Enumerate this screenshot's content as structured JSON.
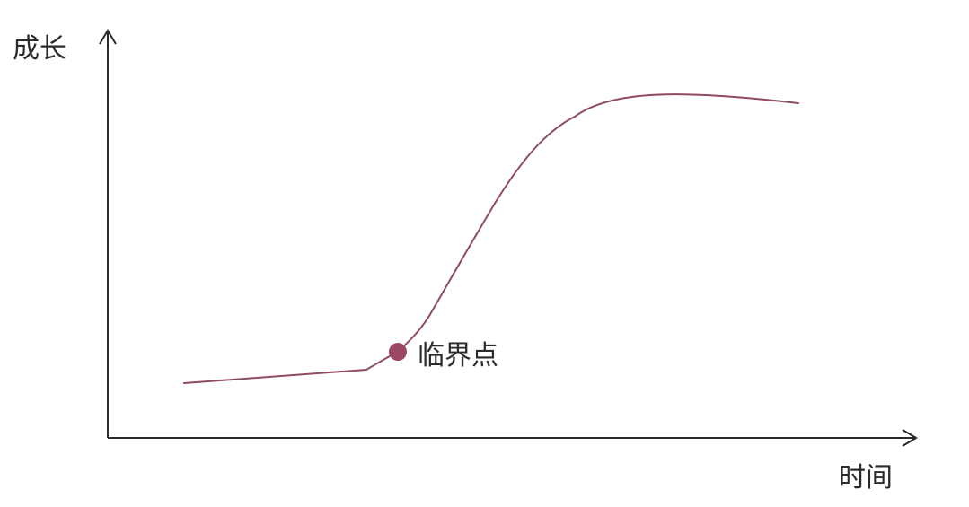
{
  "diagram": {
    "y_axis_label": "成长",
    "x_axis_label": "时间",
    "highlight_label": "临界点",
    "curve_color": "#8f4a66",
    "point_color": "#9b4766",
    "axis_color": "#2b2b2b"
  }
}
